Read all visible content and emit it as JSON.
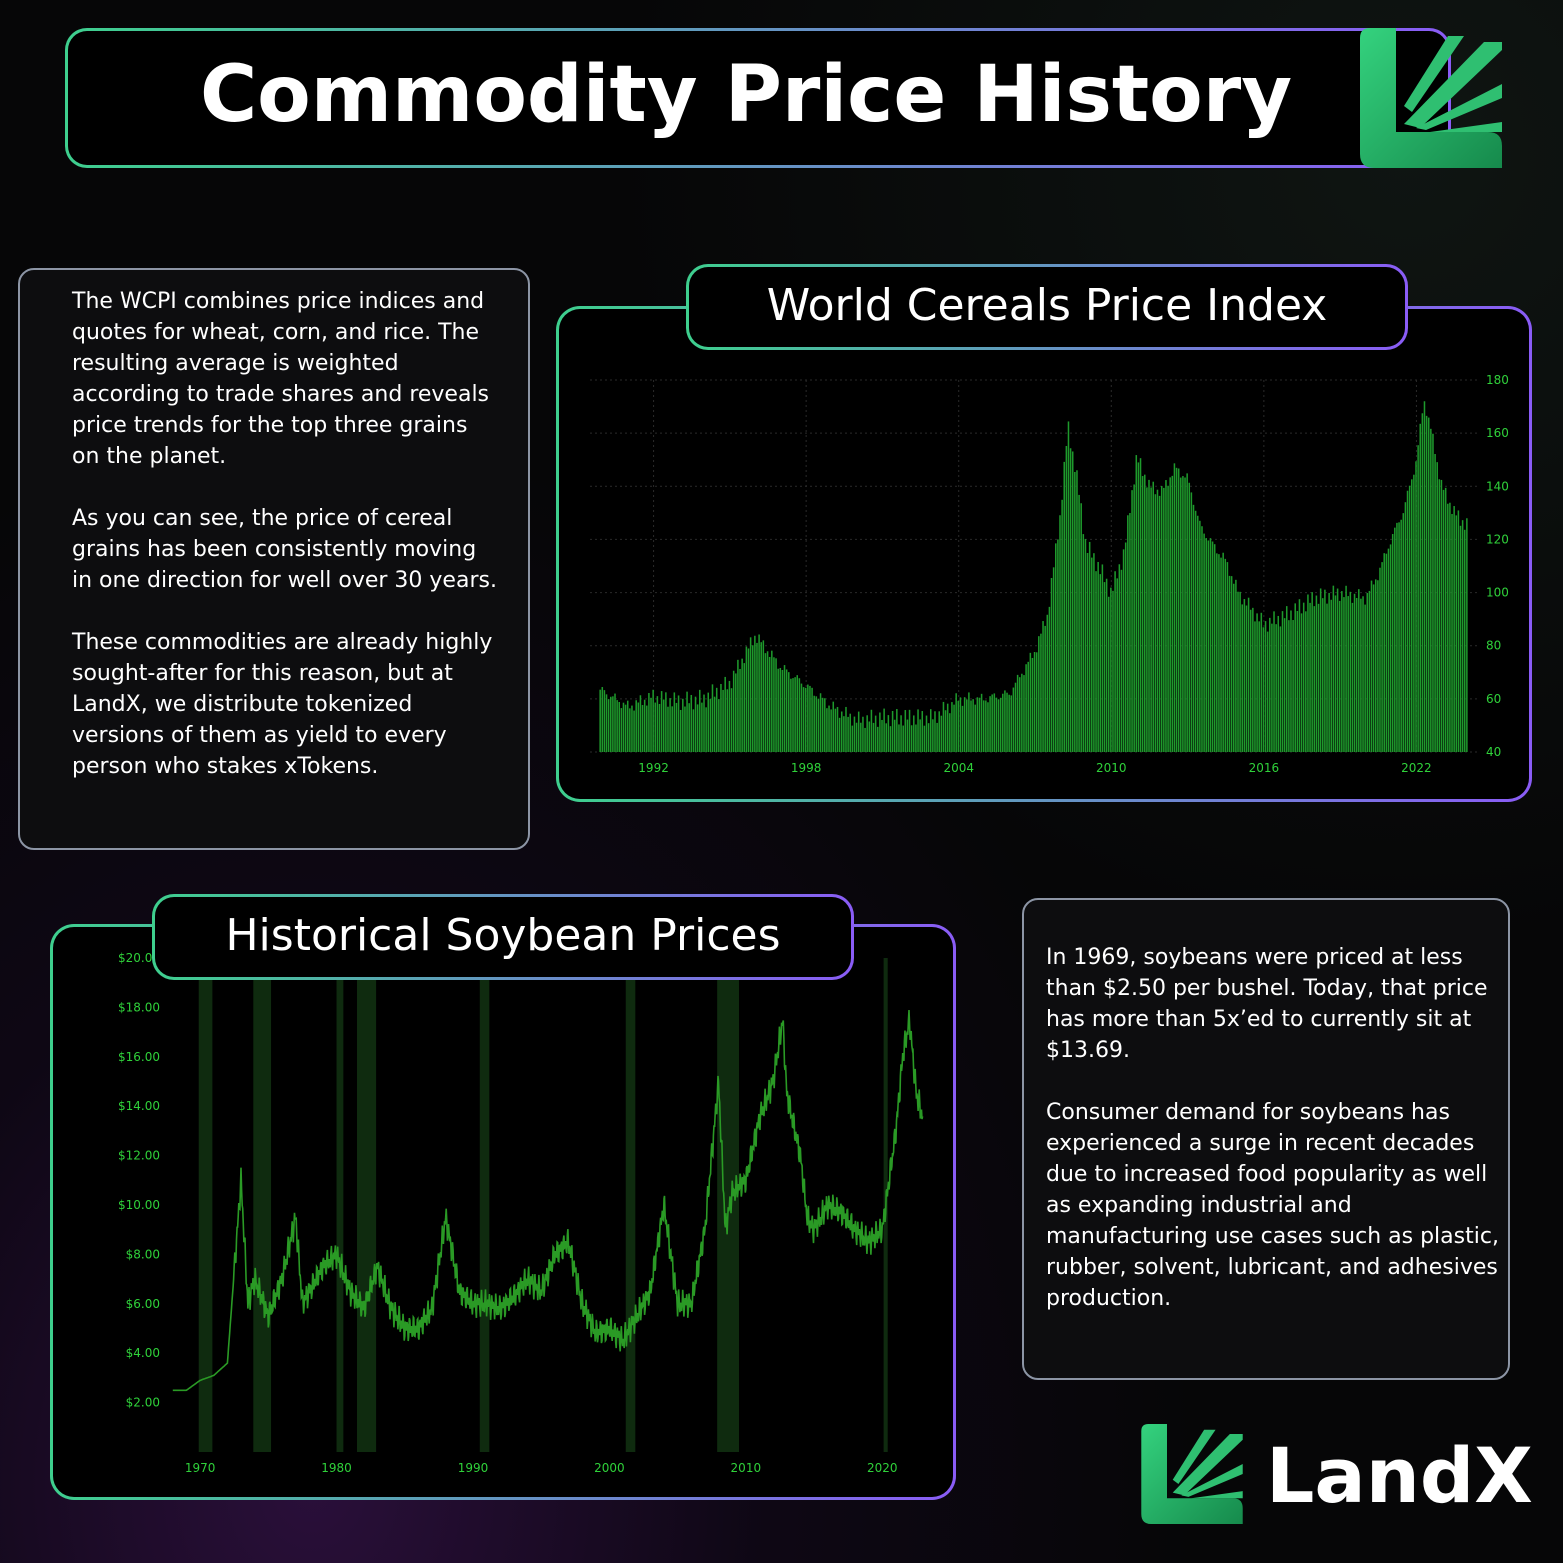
{
  "title": "Commodity Price History",
  "brand": {
    "name": "LandX",
    "color": "#2fbf71"
  },
  "left_text": [
    "The WCPI combines price indices and quotes for wheat, corn, and rice. The resulting average is weighted according to trade shares and reveals price trends for the top three grains on the planet.",
    "As you can see, the price of cereal grains has been consistently moving in one direction for well over 30 years.",
    "These commodities are already highly sought-after for this reason, but at LandX, we distribute tokenized versions of them as yield to every person who stakes xTokens."
  ],
  "right_text": [
    "In 1969, soybeans were priced at less than $2.50 per bushel. Today, that price has more than 5x’ed to currently sit at $13.69.",
    "Consumer demand for soybeans has experienced a surge in recent decades due to increased food popularity as well as expanding industrial and manufacturing use cases such as plastic, rubber, solvent, lubricant, and adhesives production."
  ],
  "chart_data": [
    {
      "type": "bar",
      "title": "World Cereals Price Index",
      "x_ticks": [
        "1992",
        "1998",
        "2004",
        "2010",
        "2016",
        "2022"
      ],
      "y_ticks": [
        "40",
        "60",
        "80",
        "100",
        "120",
        "140",
        "160",
        "180"
      ],
      "ylim": [
        40,
        180
      ],
      "xlim": [
        1989.5,
        2024.5
      ],
      "y_axis_side": "right",
      "bar_color": "#1e9a2c",
      "grid": true,
      "x": [
        1990.0,
        1991.0,
        1992.0,
        1993.0,
        1994.0,
        1995.0,
        1996.0,
        1997.0,
        1998.0,
        1999.0,
        2000.0,
        2001.0,
        2002.0,
        2003.0,
        2004.0,
        2005.0,
        2006.0,
        2007.0,
        2007.5,
        2008.0,
        2008.3,
        2008.7,
        2009.0,
        2009.5,
        2010.0,
        2010.5,
        2011.0,
        2011.5,
        2012.0,
        2012.5,
        2013.0,
        2013.5,
        2014.0,
        2014.5,
        2015.0,
        2016.0,
        2017.0,
        2018.0,
        2019.0,
        2020.0,
        2020.5,
        2021.0,
        2021.5,
        2022.0,
        2022.3,
        2022.6,
        2023.0,
        2023.5,
        2024.0
      ],
      "values": [
        63,
        57,
        61,
        59,
        60,
        66,
        84,
        72,
        65,
        57,
        52,
        53,
        53,
        53,
        60,
        60,
        62,
        78,
        92,
        130,
        163,
        140,
        118,
        110,
        100,
        115,
        151,
        140,
        138,
        147,
        143,
        125,
        118,
        112,
        100,
        88,
        92,
        98,
        100,
        98,
        107,
        120,
        131,
        150,
        173,
        160,
        140,
        130,
        125
      ]
    },
    {
      "type": "line",
      "title": "Historical Soybean Prices",
      "x_ticks": [
        "1970",
        "1980",
        "1990",
        "2000",
        "2010",
        "2020"
      ],
      "y_ticks": [
        "$2.00",
        "$4.00",
        "$6.00",
        "$8.00",
        "$10.00",
        "$12.00",
        "$14.00",
        "$16.00",
        "$18.00",
        "$20.00"
      ],
      "ylim": [
        0,
        20
      ],
      "xlim": [
        1967.5,
        2023.5
      ],
      "line_color": "#2a9a25",
      "shaded_periods": [
        [
          1969.9,
          1970.9
        ],
        [
          1973.9,
          1975.2
        ],
        [
          1980.0,
          1980.5
        ],
        [
          1981.5,
          1982.9
        ],
        [
          1990.5,
          1991.2
        ],
        [
          2001.2,
          2001.9
        ],
        [
          2007.9,
          2009.5
        ],
        [
          2020.1,
          2020.4
        ]
      ],
      "x": [
        1968.0,
        1969.0,
        1970.0,
        1971.0,
        1972.0,
        1973.0,
        1973.5,
        1974.0,
        1975.0,
        1976.0,
        1977.0,
        1977.5,
        1978.0,
        1979.0,
        1980.0,
        1981.0,
        1982.0,
        1983.0,
        1984.0,
        1985.0,
        1986.0,
        1987.0,
        1988.0,
        1989.0,
        1990.0,
        1991.0,
        1992.0,
        1993.0,
        1994.0,
        1995.0,
        1996.0,
        1997.0,
        1998.0,
        1999.0,
        2000.0,
        2001.0,
        2002.0,
        2003.0,
        2004.0,
        2005.0,
        2006.0,
        2007.0,
        2008.0,
        2008.5,
        2009.0,
        2010.0,
        2011.0,
        2012.0,
        2012.7,
        2013.0,
        2014.0,
        2014.5,
        2015.0,
        2016.0,
        2017.0,
        2018.0,
        2019.0,
        2020.0,
        2021.0,
        2021.5,
        2022.0,
        2022.5,
        2023.0
      ],
      "values": [
        2.5,
        2.5,
        2.9,
        3.1,
        3.6,
        11.0,
        6.0,
        7.0,
        5.5,
        7.0,
        9.5,
        6.0,
        6.5,
        7.5,
        8.0,
        6.5,
        5.8,
        7.5,
        5.8,
        5.0,
        5.0,
        5.8,
        9.5,
        6.5,
        6.0,
        6.0,
        5.8,
        6.3,
        7.0,
        6.5,
        8.0,
        8.5,
        6.0,
        4.8,
        5.0,
        4.5,
        5.5,
        6.5,
        10.0,
        6.0,
        6.0,
        9.0,
        15.0,
        9.0,
        10.5,
        11.0,
        13.5,
        15.0,
        17.5,
        14.5,
        12.0,
        9.5,
        9.0,
        10.0,
        9.7,
        9.0,
        8.5,
        9.0,
        13.0,
        16.0,
        17.5,
        14.5,
        13.5
      ]
    }
  ]
}
